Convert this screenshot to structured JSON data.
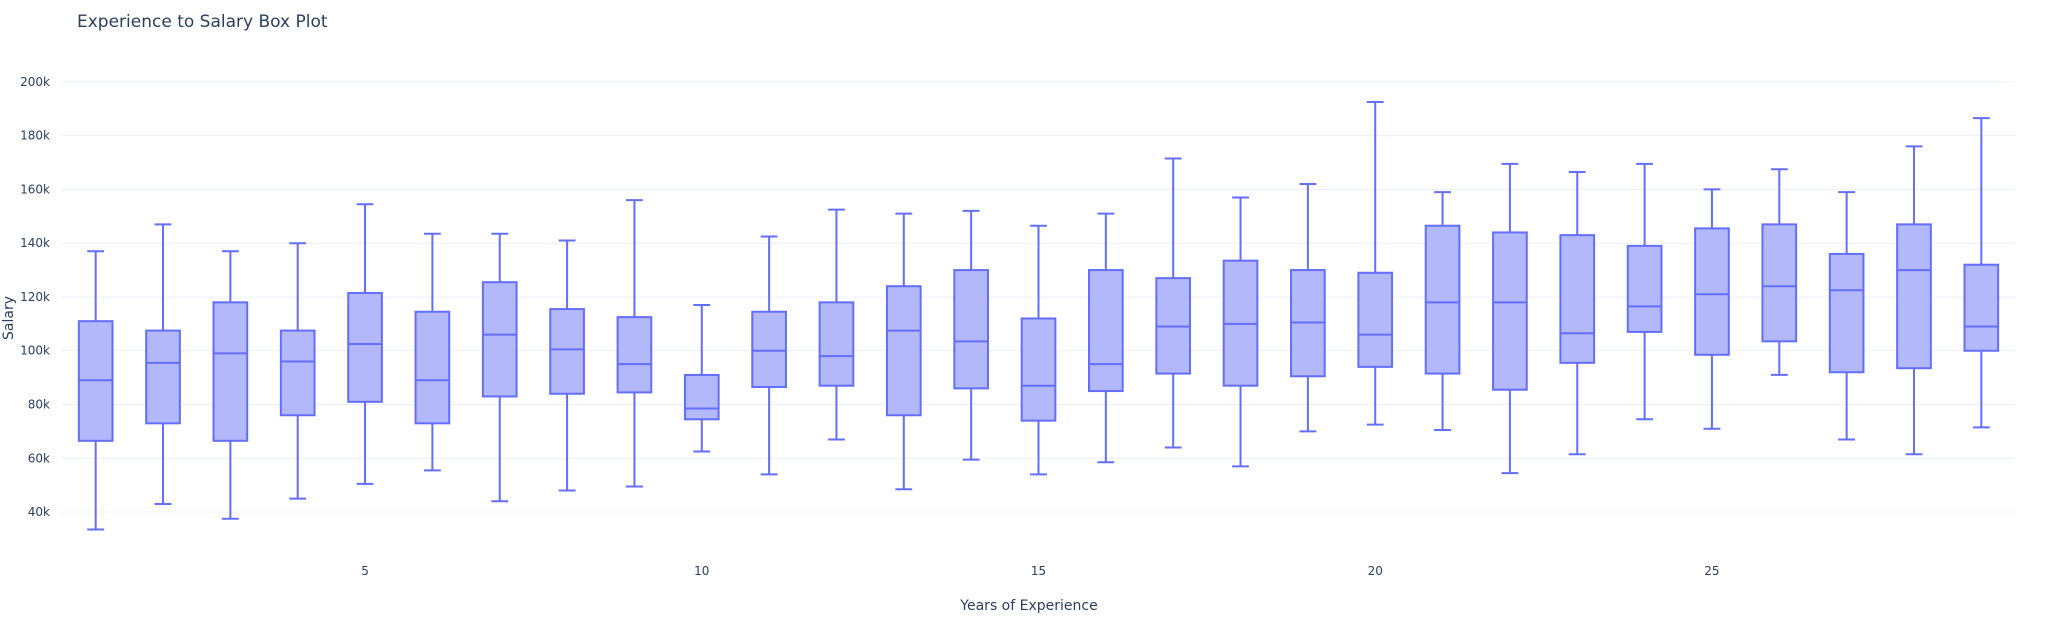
{
  "chart_data": {
    "type": "box",
    "title": "Experience to Salary Box Plot",
    "xlabel": "Years of Experience",
    "ylabel": "Salary",
    "x_ticks": [
      5,
      10,
      15,
      20,
      25
    ],
    "x_tick_labels": [
      "5",
      "10",
      "15",
      "20",
      "25"
    ],
    "y_ticks": [
      40000,
      60000,
      80000,
      100000,
      120000,
      140000,
      160000,
      180000,
      200000
    ],
    "y_tick_labels": [
      "40k",
      "60k",
      "80k",
      "100k",
      "120k",
      "140k",
      "160k",
      "180k",
      "200k"
    ],
    "xlim": [
      0.5,
      29.5
    ],
    "ylim": [
      27000,
      210000
    ],
    "grid": true,
    "legend": "none",
    "colors": {
      "line": "#636efa",
      "fill": "#b3b8fb",
      "grid": "#ebf0f8",
      "text": "#2a3f5f"
    },
    "boxes": [
      {
        "x": 1,
        "min": 33500,
        "q1": 66500,
        "median": 89000,
        "q3": 111000,
        "max": 137000
      },
      {
        "x": 2,
        "min": 43000,
        "q1": 73000,
        "median": 95500,
        "q3": 107500,
        "max": 147000
      },
      {
        "x": 3,
        "min": 37500,
        "q1": 66500,
        "median": 99000,
        "q3": 118000,
        "max": 137000
      },
      {
        "x": 4,
        "min": 45000,
        "q1": 76000,
        "median": 96000,
        "q3": 107500,
        "max": 140000
      },
      {
        "x": 5,
        "min": 50500,
        "q1": 81000,
        "median": 102500,
        "q3": 121500,
        "max": 154500
      },
      {
        "x": 6,
        "min": 55500,
        "q1": 73000,
        "median": 89000,
        "q3": 114500,
        "max": 143500
      },
      {
        "x": 7,
        "min": 44000,
        "q1": 83000,
        "median": 106000,
        "q3": 125500,
        "max": 143500
      },
      {
        "x": 8,
        "min": 48000,
        "q1": 84000,
        "median": 100500,
        "q3": 115500,
        "max": 141000
      },
      {
        "x": 9,
        "min": 49500,
        "q1": 84500,
        "median": 95000,
        "q3": 112500,
        "max": 156000
      },
      {
        "x": 10,
        "min": 62500,
        "q1": 74500,
        "median": 78500,
        "q3": 91000,
        "max": 117000
      },
      {
        "x": 11,
        "min": 54000,
        "q1": 86500,
        "median": 100000,
        "q3": 114500,
        "max": 142500
      },
      {
        "x": 12,
        "min": 67000,
        "q1": 87000,
        "median": 98000,
        "q3": 118000,
        "max": 152500
      },
      {
        "x": 13,
        "min": 48500,
        "q1": 76000,
        "median": 107500,
        "q3": 124000,
        "max": 151000
      },
      {
        "x": 14,
        "min": 59500,
        "q1": 86000,
        "median": 103500,
        "q3": 130000,
        "max": 152000
      },
      {
        "x": 15,
        "min": 54000,
        "q1": 74000,
        "median": 87000,
        "q3": 112000,
        "max": 146500
      },
      {
        "x": 16,
        "min": 58500,
        "q1": 85000,
        "median": 95000,
        "q3": 130000,
        "max": 151000
      },
      {
        "x": 17,
        "min": 64000,
        "q1": 91500,
        "median": 109000,
        "q3": 127000,
        "max": 171500
      },
      {
        "x": 18,
        "min": 57000,
        "q1": 87000,
        "median": 110000,
        "q3": 133500,
        "max": 157000
      },
      {
        "x": 19,
        "min": 70000,
        "q1": 90500,
        "median": 110500,
        "q3": 130000,
        "max": 162000
      },
      {
        "x": 20,
        "min": 72500,
        "q1": 94000,
        "median": 106000,
        "q3": 129000,
        "max": 192500
      },
      {
        "x": 21,
        "min": 70500,
        "q1": 91500,
        "median": 118000,
        "q3": 146500,
        "max": 159000
      },
      {
        "x": 22,
        "min": 54500,
        "q1": 85500,
        "median": 118000,
        "q3": 144000,
        "max": 169500
      },
      {
        "x": 23,
        "min": 61500,
        "q1": 95500,
        "median": 106500,
        "q3": 143000,
        "max": 166500
      },
      {
        "x": 24,
        "min": 74500,
        "q1": 107000,
        "median": 116500,
        "q3": 139000,
        "max": 169500
      },
      {
        "x": 25,
        "min": 71000,
        "q1": 98500,
        "median": 121000,
        "q3": 145500,
        "max": 160000
      },
      {
        "x": 26,
        "min": 91000,
        "q1": 103500,
        "median": 124000,
        "q3": 147000,
        "max": 167500
      },
      {
        "x": 27,
        "min": 67000,
        "q1": 92000,
        "median": 122500,
        "q3": 136000,
        "max": 159000
      },
      {
        "x": 28,
        "min": 61500,
        "q1": 93500,
        "median": 130000,
        "q3": 147000,
        "max": 176000
      },
      {
        "x": 29,
        "min": 71500,
        "q1": 100000,
        "median": 109000,
        "q3": 132000,
        "max": 186500
      }
    ]
  }
}
